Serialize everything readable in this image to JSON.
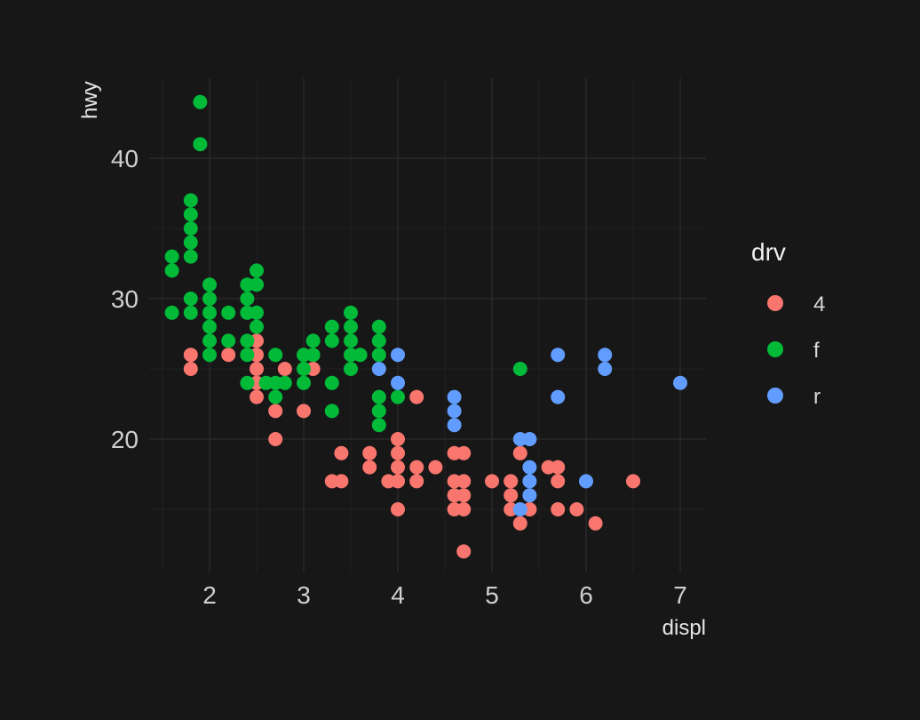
{
  "chart_data": {
    "type": "scatter",
    "xlabel": "displ",
    "ylabel": "hwy",
    "xlim": [
      1.5,
      7.0
    ],
    "ylim": [
      12,
      44
    ],
    "x_ticks": [
      2,
      3,
      4,
      5,
      6,
      7
    ],
    "x_tick_labels": [
      "2",
      "3",
      "4",
      "5",
      "6",
      "7"
    ],
    "y_ticks": [
      20,
      30,
      40
    ],
    "y_tick_labels": [
      "20",
      "30",
      "40"
    ],
    "grid": true,
    "legend": {
      "title": "drv",
      "position": "right",
      "entries": [
        {
          "label": "4",
          "color": "#F8766D"
        },
        {
          "label": "f",
          "color": "#00BA38"
        },
        {
          "label": "r",
          "color": "#619CFF"
        }
      ]
    },
    "series": [
      {
        "color": "#F8766D",
        "points": [
          [
            1.8,
            26
          ],
          [
            1.8,
            25
          ],
          [
            2.2,
            26
          ],
          [
            2.5,
            27
          ],
          [
            2.5,
            26
          ],
          [
            2.5,
            25
          ],
          [
            2.5,
            24
          ],
          [
            2.5,
            23
          ],
          [
            2.7,
            22
          ],
          [
            2.7,
            20
          ],
          [
            2.8,
            25
          ],
          [
            3.0,
            22
          ],
          [
            3.1,
            25
          ],
          [
            3.3,
            17
          ],
          [
            3.4,
            19
          ],
          [
            3.4,
            17
          ],
          [
            3.7,
            19
          ],
          [
            3.7,
            18
          ],
          [
            3.9,
            17
          ],
          [
            4.0,
            20
          ],
          [
            4.0,
            19
          ],
          [
            4.0,
            18
          ],
          [
            4.0,
            17
          ],
          [
            4.0,
            15
          ],
          [
            4.2,
            23
          ],
          [
            4.2,
            18
          ],
          [
            4.2,
            17
          ],
          [
            4.4,
            18
          ],
          [
            4.6,
            19
          ],
          [
            4.6,
            17
          ],
          [
            4.6,
            16
          ],
          [
            4.6,
            15
          ],
          [
            4.7,
            19
          ],
          [
            4.7,
            17
          ],
          [
            4.7,
            16
          ],
          [
            4.7,
            15
          ],
          [
            4.7,
            12
          ],
          [
            5.0,
            17
          ],
          [
            5.2,
            17
          ],
          [
            5.2,
            16
          ],
          [
            5.2,
            15
          ],
          [
            5.3,
            19
          ],
          [
            5.3,
            14
          ],
          [
            5.4,
            15
          ],
          [
            5.6,
            18
          ],
          [
            5.7,
            18
          ],
          [
            5.7,
            17
          ],
          [
            5.7,
            15
          ],
          [
            5.9,
            15
          ],
          [
            6.1,
            14
          ],
          [
            6.5,
            17
          ]
        ]
      },
      {
        "color": "#00BA38",
        "points": [
          [
            1.6,
            33
          ],
          [
            1.6,
            32
          ],
          [
            1.6,
            29
          ],
          [
            1.8,
            37
          ],
          [
            1.8,
            36
          ],
          [
            1.8,
            35
          ],
          [
            1.8,
            34
          ],
          [
            1.8,
            33
          ],
          [
            1.8,
            30
          ],
          [
            1.8,
            29
          ],
          [
            1.9,
            44
          ],
          [
            1.9,
            41
          ],
          [
            2.0,
            31
          ],
          [
            2.0,
            30
          ],
          [
            2.0,
            29
          ],
          [
            2.0,
            28
          ],
          [
            2.0,
            27
          ],
          [
            2.0,
            26
          ],
          [
            2.2,
            29
          ],
          [
            2.2,
            27
          ],
          [
            2.4,
            31
          ],
          [
            2.4,
            30
          ],
          [
            2.4,
            29
          ],
          [
            2.4,
            27
          ],
          [
            2.4,
            26
          ],
          [
            2.4,
            24
          ],
          [
            2.5,
            32
          ],
          [
            2.5,
            31
          ],
          [
            2.5,
            29
          ],
          [
            2.5,
            28
          ],
          [
            2.6,
            24
          ],
          [
            2.7,
            26
          ],
          [
            2.7,
            24
          ],
          [
            2.7,
            23
          ],
          [
            2.8,
            24
          ],
          [
            3.0,
            26
          ],
          [
            3.0,
            25
          ],
          [
            3.0,
            24
          ],
          [
            3.1,
            27
          ],
          [
            3.1,
            26
          ],
          [
            3.3,
            28
          ],
          [
            3.3,
            27
          ],
          [
            3.3,
            24
          ],
          [
            3.3,
            22
          ],
          [
            3.5,
            29
          ],
          [
            3.5,
            28
          ],
          [
            3.5,
            27
          ],
          [
            3.5,
            26
          ],
          [
            3.5,
            25
          ],
          [
            3.6,
            26
          ],
          [
            3.8,
            28
          ],
          [
            3.8,
            27
          ],
          [
            3.8,
            26
          ],
          [
            3.8,
            23
          ],
          [
            3.8,
            22
          ],
          [
            3.8,
            21
          ],
          [
            4.0,
            23
          ],
          [
            5.3,
            25
          ]
        ]
      },
      {
        "color": "#619CFF",
        "points": [
          [
            3.8,
            25
          ],
          [
            4.0,
            26
          ],
          [
            4.0,
            24
          ],
          [
            4.6,
            23
          ],
          [
            4.6,
            22
          ],
          [
            4.6,
            21
          ],
          [
            5.3,
            20
          ],
          [
            5.3,
            15
          ],
          [
            5.4,
            20
          ],
          [
            5.4,
            18
          ],
          [
            5.4,
            17
          ],
          [
            5.4,
            16
          ],
          [
            5.7,
            26
          ],
          [
            5.7,
            23
          ],
          [
            6.0,
            17
          ],
          [
            6.2,
            26
          ],
          [
            6.2,
            25
          ],
          [
            7.0,
            24
          ]
        ]
      }
    ]
  }
}
